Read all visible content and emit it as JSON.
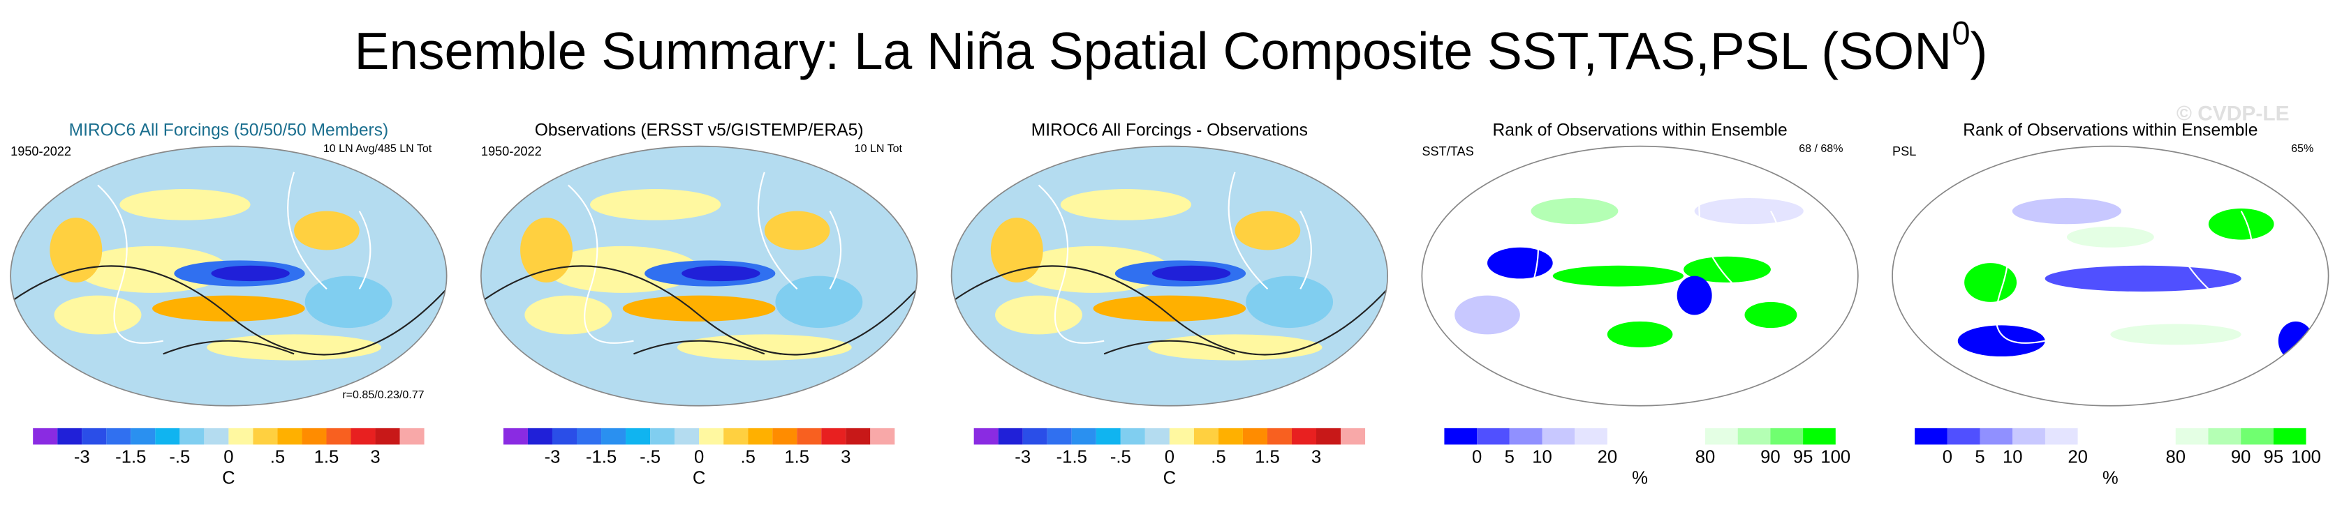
{
  "title": "Ensemble Summary: La Niña Spatial Composite SST,TAS,PSL (SON",
  "title_superscript": "0",
  "watermark": "© CVDP-LE",
  "panels": [
    {
      "title": "MIROC6 All Forcings (50/50/50 Members)",
      "left_label": "1950-2022",
      "right_label": "10 LN Avg/485 LN Tot",
      "bottom_label": "r=0.85/0.23/0.77"
    },
    {
      "title": "Observations (ERSST v5/GISTEMP/ERA5)",
      "left_label": "1950-2022",
      "right_label": "10 LN Tot"
    },
    {
      "title": "MIROC6 All Forcings - Observations"
    },
    {
      "title": "Rank of Observations within Ensemble",
      "left_label": "SST/TAS",
      "right_label": "68 /  68%"
    },
    {
      "title": "Rank of Observations within Ensemble",
      "left_label": "PSL",
      "right_label": "65%"
    }
  ],
  "colorbars": {
    "temperature": {
      "ticks": [
        "-3",
        "-1.5",
        "-.5",
        "0",
        ".5",
        "1.5",
        "3"
      ],
      "unit": "C",
      "colors": [
        "#8a2be2",
        "#2020d8",
        "#2a4ee8",
        "#3070f0",
        "#2a90f0",
        "#10b4f0",
        "#80cef0",
        "#b4dcf0",
        "#fff8a0",
        "#ffd040",
        "#ffb000",
        "#ff8c00",
        "#f86020",
        "#e82020",
        "#c81818",
        "#f8a8a8"
      ]
    },
    "rank": {
      "ticks": [
        "0",
        "5",
        "10",
        "20",
        "80",
        "90",
        "95",
        "100"
      ],
      "unit": "%",
      "colors": [
        "#0000ff",
        "#5050ff",
        "#9090ff",
        "#c8c8ff",
        "#e4e4ff",
        "#ffffff",
        "#ffffff",
        "#ffffff",
        "#e4ffe4",
        "#b4ffb4",
        "#70ff70",
        "#00ff00"
      ]
    }
  }
}
